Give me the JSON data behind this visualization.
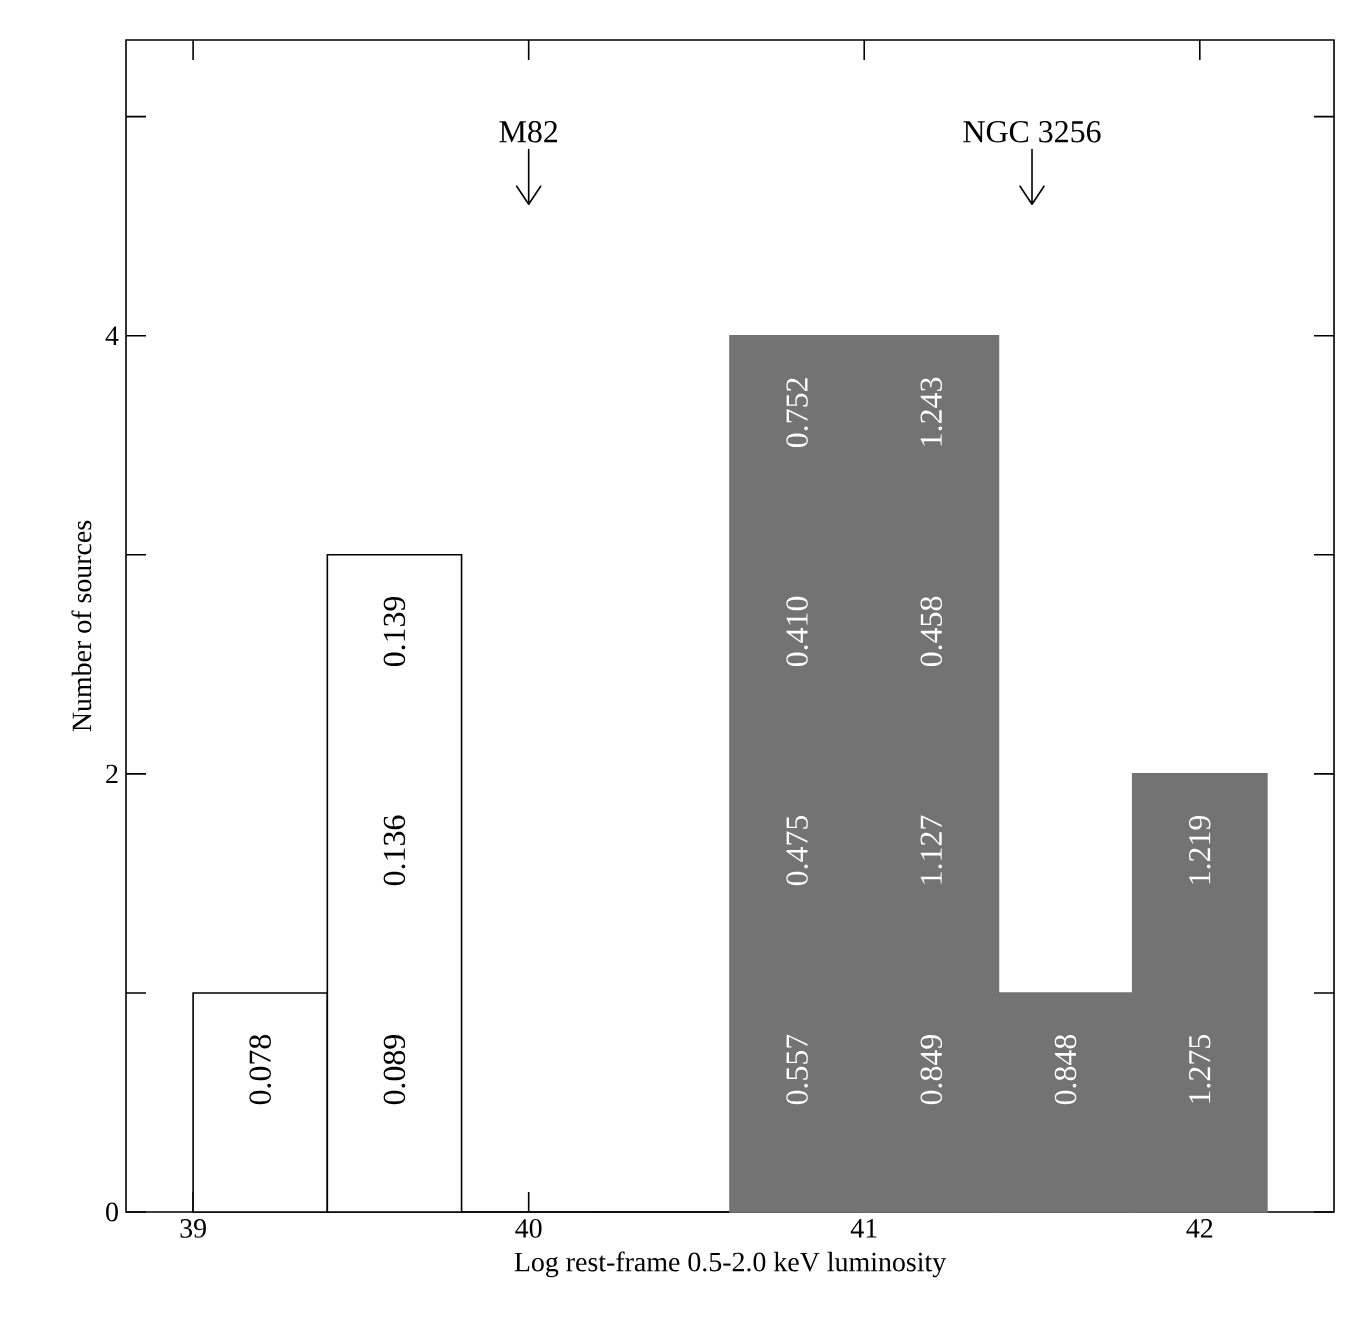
{
  "chart_data": {
    "type": "histogram",
    "xlabel": "Log rest-frame 0.5-2.0 keV luminosity",
    "ylabel": "Number of sources",
    "bins": [
      39.0,
      39.4,
      39.8,
      40.2,
      40.6,
      41.0,
      41.4,
      41.8,
      42.2
    ],
    "values": [
      1,
      3,
      0,
      0,
      4,
      4,
      1,
      2
    ],
    "colors": [
      "#ffffff",
      "#ffffff",
      "#ffffff",
      "#ffffff",
      "#737373",
      "#737373",
      "#737373",
      "#737373"
    ],
    "xlim": [
      38.8,
      42.4
    ],
    "xticks": [
      39,
      40,
      41,
      42
    ],
    "ylim": [
      0,
      5.35
    ],
    "yticks": [
      0,
      {
        "value": 1,
        "label": null
      },
      2,
      {
        "value": 3,
        "label": null
      },
      4,
      {
        "value": 5,
        "label": null
      }
    ],
    "grid": false,
    "ref_lines": [
      {
        "axis": "x",
        "value": 40,
        "label": "M82"
      },
      {
        "axis": "x",
        "value": 41.5,
        "label": "NGC 3256"
      }
    ],
    "annotations": [
      "0.078",
      "0.089",
      "0.136",
      "0.139",
      "0.557",
      "0.475",
      "0.410",
      "0.752",
      "0.849",
      "1.127",
      "0.458",
      "1.243",
      "0.848",
      "1.275",
      "1.219"
    ]
  }
}
